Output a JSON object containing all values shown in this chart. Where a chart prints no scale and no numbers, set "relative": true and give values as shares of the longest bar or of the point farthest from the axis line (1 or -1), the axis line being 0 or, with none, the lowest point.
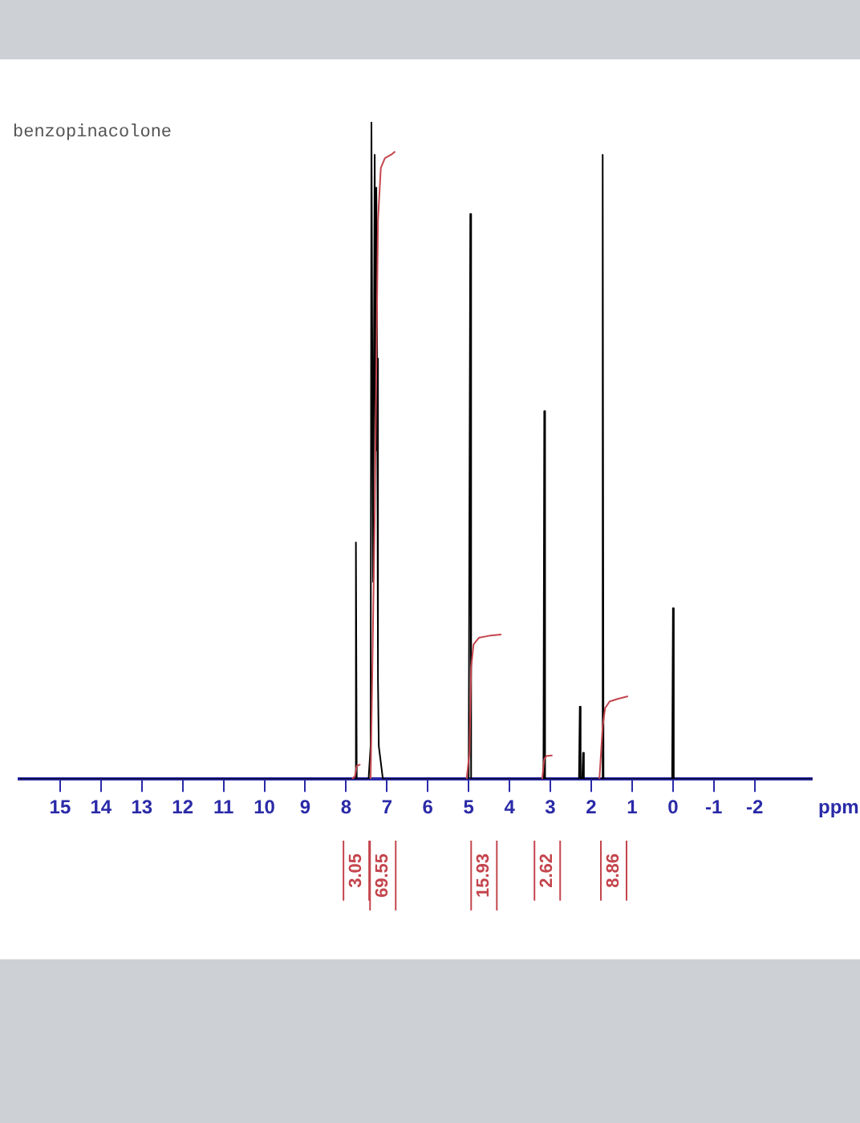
{
  "chart_data": {
    "type": "line",
    "title": "benzopinacolone",
    "xlabel": "ppm",
    "relative": true,
    "xlim": [
      16,
      -3.4
    ],
    "xticks": [
      15,
      14,
      13,
      12,
      11,
      10,
      9,
      8,
      7,
      6,
      5,
      4,
      3,
      2,
      1,
      0,
      -1,
      -2
    ],
    "grid": false,
    "legend": false,
    "marker": "none",
    "line_style": "solid",
    "series": [
      {
        "color": "#000000",
        "x": [
          16,
          7.8,
          7.78,
          7.76,
          7.74,
          7.45,
          7.4,
          7.38,
          7.34,
          7.3,
          7.28,
          7.26,
          7.24,
          7.22,
          7.2,
          7.1,
          5.0,
          4.98,
          4.96,
          4.94,
          3.17,
          3.15,
          3.13,
          2.3,
          2.28,
          2.26,
          2.22,
          2.2,
          2.18,
          1.74,
          1.72,
          1.7,
          0.02,
          0,
          -0.02,
          -3.4
        ],
        "values": [
          0,
          0,
          0,
          0.36,
          0,
          0,
          0.05,
          1.0,
          0.3,
          0.95,
          0.5,
          0.9,
          0.64,
          0.15,
          0.05,
          0,
          0,
          0,
          0.86,
          0,
          0,
          0.56,
          0,
          0,
          0.11,
          0,
          0,
          0.04,
          0,
          0,
          0.95,
          0,
          0,
          0.26,
          0,
          0
        ]
      },
      {
        "color": "#c4454d",
        "x": [
          7.85,
          7.78,
          7.74,
          7.65,
          7.55,
          7.4,
          7.3,
          7.22,
          7.15,
          7.05,
          6.9,
          6.8,
          6.0,
          5.05,
          4.98,
          4.94,
          4.88,
          4.75,
          4.5,
          4.2,
          3.6,
          3.2,
          3.15,
          3.1,
          2.95,
          2.5,
          1.8,
          1.72,
          1.66,
          1.55,
          1.35,
          1.1
        ],
        "values": [
          0,
          0.005,
          0.02,
          0.022,
          null,
          0,
          0.4,
          0.85,
          0.93,
          0.945,
          0.95,
          0.955,
          null,
          0,
          0.04,
          0.17,
          0.205,
          0.215,
          0.218,
          0.22,
          null,
          0,
          0.03,
          0.035,
          0.036,
          null,
          0,
          0.08,
          0.108,
          0.118,
          0.122,
          0.126
        ]
      }
    ],
    "annotations": [
      "3.05",
      "69.55",
      "15.93",
      "2.62",
      "8.86"
    ]
  }
}
